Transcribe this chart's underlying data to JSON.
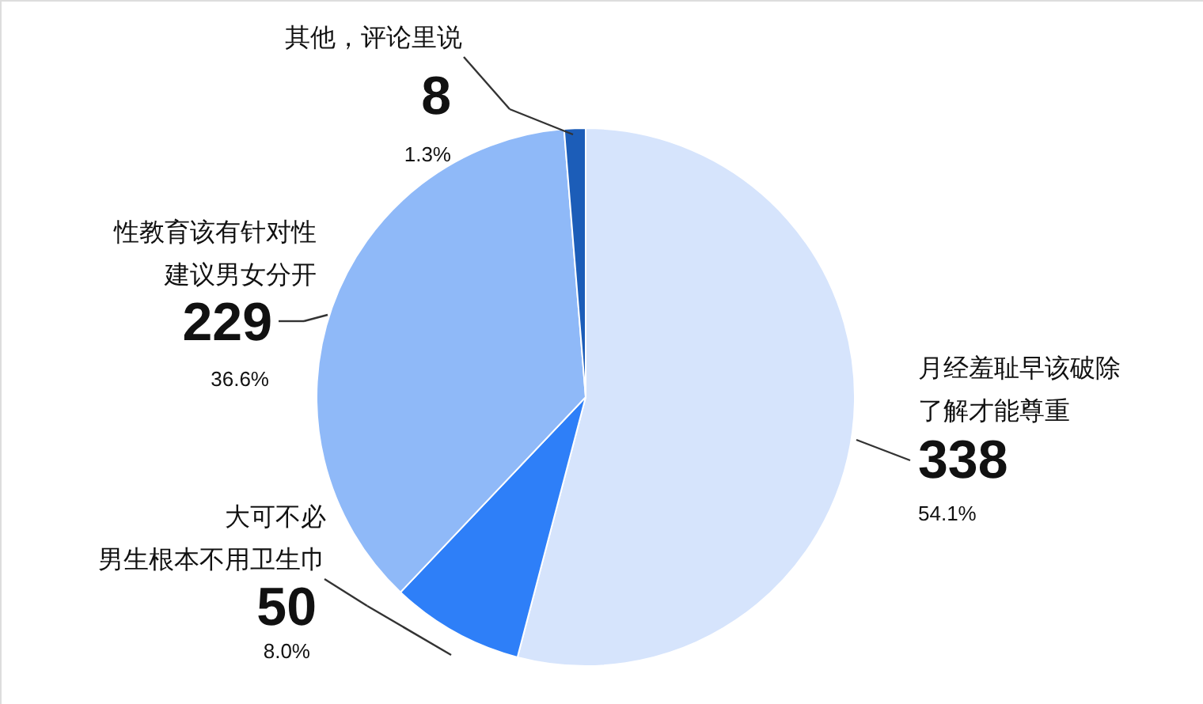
{
  "chart_data": {
    "type": "pie",
    "categories": [
      "月经羞耻早该破除了解才能尊重",
      "大可不必男生根本不用卫生巾",
      "性教育该有针对性建议男女分开",
      "其他，评论里说"
    ],
    "values": [
      338,
      50,
      229,
      8
    ],
    "colors": [
      "#d6e4fc",
      "#2e7ff8",
      "#8fb9f8",
      "#1c5db8"
    ],
    "value_labels": [
      "338",
      "50",
      "229",
      "8"
    ],
    "annotations": [
      "54.1%",
      "8.0%",
      "36.6%",
      "1.3%"
    ]
  }
}
